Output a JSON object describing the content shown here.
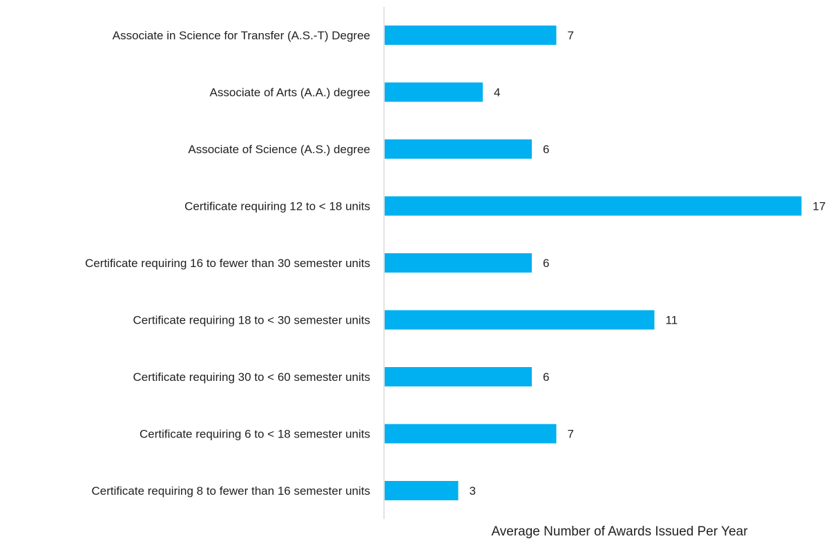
{
  "chart_data": {
    "type": "bar",
    "orientation": "horizontal",
    "title": "",
    "xlabel": "Average Number of Awards Issued Per Year",
    "ylabel": "",
    "categories": [
      "Associate in Science for Transfer (A.S.-T) Degree",
      "Associate of Arts (A.A.) degree",
      "Associate of Science (A.S.) degree",
      "Certificate requiring 12 to < 18 units",
      "Certificate requiring 16 to fewer than 30 semester units",
      "Certificate requiring 18 to < 30 semester units",
      "Certificate requiring 30 to < 60 semester units",
      "Certificate requiring 6 to < 18 semester units",
      "Certificate requiring 8 to fewer than 16 semester units"
    ],
    "values": [
      7,
      4,
      6,
      17,
      6,
      11,
      6,
      7,
      3
    ],
    "data_labels": [
      "7",
      "4",
      "6",
      "17",
      "6",
      "11",
      "6",
      "7",
      "3"
    ],
    "xlim": [
      0,
      17.5
    ],
    "grid": false,
    "bar_color": "#00B0F0",
    "axis_color": "#D9D9D9",
    "text_color": "#1F1F1F"
  }
}
